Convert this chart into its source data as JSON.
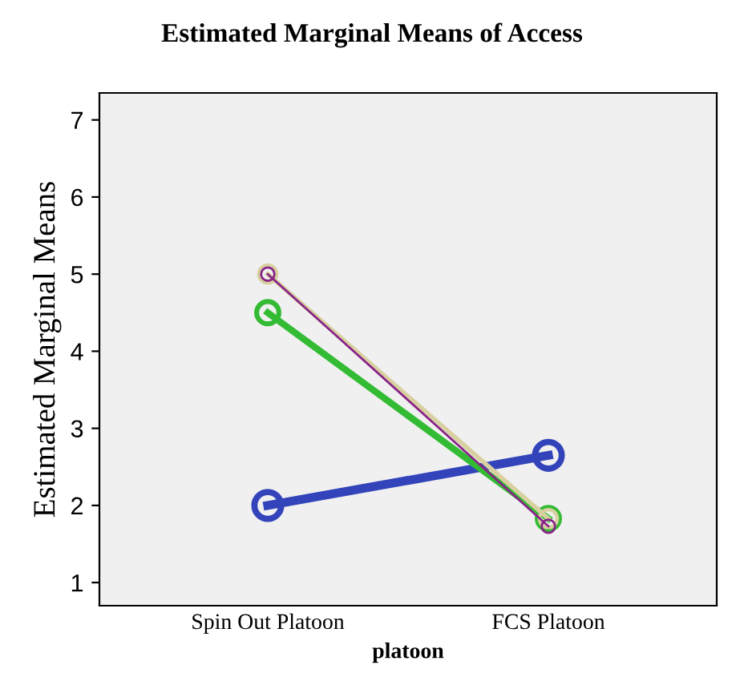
{
  "chart_data": {
    "type": "line",
    "title": "Estimated Marginal Means of Access",
    "xlabel": "platoon",
    "ylabel": "Estimated Marginal Means",
    "categories": [
      "Spin Out Platoon",
      "FCS Platoon"
    ],
    "series": [
      {
        "color": "#3344bb",
        "values": [
          2.0,
          2.65
        ]
      },
      {
        "color": "#33bb33",
        "values": [
          4.5,
          1.83
        ]
      },
      {
        "color": "#d8d0a0",
        "values": [
          5.0,
          1.83
        ]
      },
      {
        "color": "#882288",
        "values": [
          5.0,
          1.73
        ]
      }
    ],
    "ylim": [
      0.7,
      7.35
    ],
    "yticks": [
      1,
      2,
      3,
      4,
      5,
      6,
      7
    ],
    "marker": "circle",
    "line_style": "solid",
    "grid": false,
    "legend": false
  }
}
